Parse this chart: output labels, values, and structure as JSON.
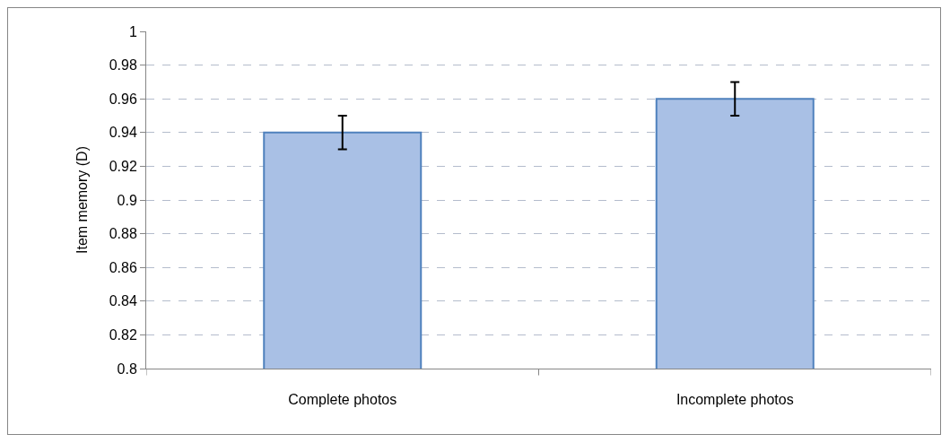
{
  "chart_data": {
    "type": "bar",
    "ylabel": "Item memory (D)",
    "categories": [
      "Complete photos",
      "Incomplete photos"
    ],
    "values": [
      0.94,
      0.96
    ],
    "errors": [
      0.01,
      0.01
    ],
    "color": "#a9c0e5",
    "ylim": [
      0.8,
      1
    ],
    "yticks": [
      0.8,
      0.82,
      0.84,
      0.86,
      0.88,
      0.9,
      0.92,
      0.94,
      0.96,
      0.98,
      1
    ],
    "grid": "y"
  }
}
